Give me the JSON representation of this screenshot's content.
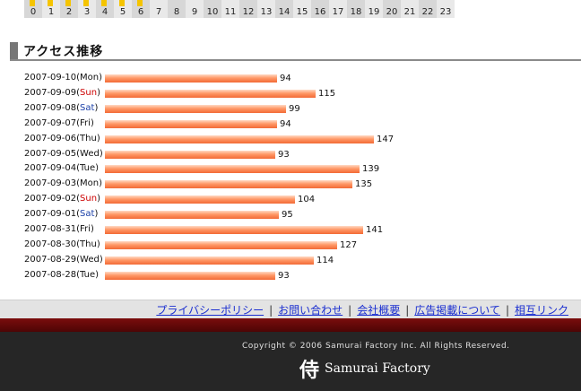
{
  "hour_strip": {
    "hours": [
      "0",
      "1",
      "2",
      "3",
      "4",
      "5",
      "6",
      "7",
      "8",
      "9",
      "10",
      "11",
      "12",
      "13",
      "14",
      "15",
      "16",
      "17",
      "18",
      "19",
      "20",
      "21",
      "22",
      "23"
    ],
    "highlighted": [
      0,
      1,
      2,
      3,
      4,
      5,
      6
    ]
  },
  "section": {
    "title": "アクセス推移"
  },
  "chart_data": {
    "type": "bar",
    "orientation": "horizontal",
    "categories": [
      {
        "date": "2007-09-10",
        "day": "Mon"
      },
      {
        "date": "2007-09-09",
        "day": "Sun"
      },
      {
        "date": "2007-09-08",
        "day": "Sat"
      },
      {
        "date": "2007-09-07",
        "day": "Fri"
      },
      {
        "date": "2007-09-06",
        "day": "Thu"
      },
      {
        "date": "2007-09-05",
        "day": "Wed"
      },
      {
        "date": "2007-09-04",
        "day": "Tue"
      },
      {
        "date": "2007-09-03",
        "day": "Mon"
      },
      {
        "date": "2007-09-02",
        "day": "Sun"
      },
      {
        "date": "2007-09-01",
        "day": "Sat"
      },
      {
        "date": "2007-08-31",
        "day": "Fri"
      },
      {
        "date": "2007-08-30",
        "day": "Thu"
      },
      {
        "date": "2007-08-29",
        "day": "Wed"
      },
      {
        "date": "2007-08-28",
        "day": "Tue"
      }
    ],
    "values": [
      94,
      115,
      99,
      94,
      147,
      93,
      139,
      135,
      104,
      95,
      141,
      127,
      114,
      93
    ],
    "xlim": [
      0,
      147
    ],
    "grid": false,
    "bar_color": "#f57a45",
    "sun_color": "#cc0000",
    "sat_color": "#1a3fa8"
  },
  "footer": {
    "links": [
      "プライバシーポリシー",
      "お問い合わせ",
      "会社概要",
      "広告掲載について",
      "相互リンク"
    ],
    "separator": "|",
    "copyright": "Copyright © 2006 Samurai Factory Inc. All Rights Reserved.",
    "logo_kanji": "侍",
    "logo_text": "Samurai Factory"
  }
}
